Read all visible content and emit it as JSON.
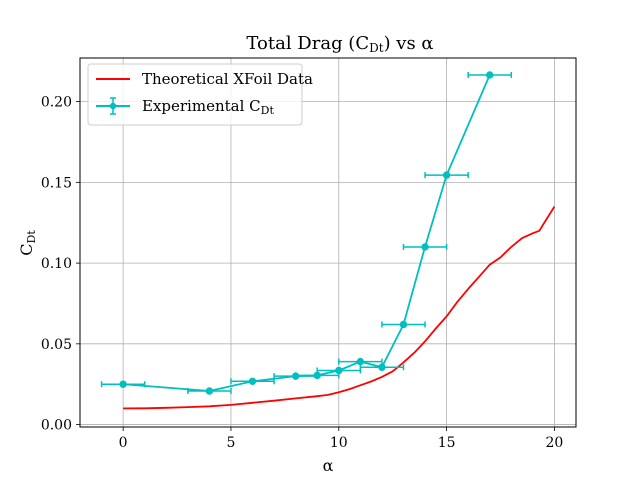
{
  "chart_data": {
    "type": "line",
    "title": "Total Drag (C",
    "title_sub": "Dt",
    "title_tail": ") vs α",
    "xlabel": "α",
    "ylabel": "C",
    "ylabel_sub": "Dt",
    "xlim": [
      -2.0,
      21.0
    ],
    "ylim": [
      -0.0015,
      0.227
    ],
    "grid": true,
    "legend_position": "top-left",
    "x_ticks": [
      0,
      5,
      10,
      15,
      20
    ],
    "x_tick_labels": [
      "0",
      "5",
      "10",
      "15",
      "20"
    ],
    "y_ticks": [
      0.0,
      0.05,
      0.1,
      0.15,
      0.2
    ],
    "y_tick_labels": [
      "0.00",
      "0.05",
      "0.10",
      "0.15",
      "0.20"
    ],
    "series": [
      {
        "name": "Theoretical XFoil Data",
        "color": "#ff0000",
        "x": [
          0,
          1,
          2,
          3,
          4,
          5,
          6,
          7,
          8,
          9,
          9.5,
          10,
          10.5,
          11,
          11.5,
          12,
          12.5,
          13,
          13.5,
          14,
          14.5,
          15,
          15.5,
          16,
          16.5,
          17,
          17.5,
          18,
          18.5,
          19,
          19.3,
          19.6,
          20
        ],
        "y": [
          0.01,
          0.0101,
          0.0104,
          0.0108,
          0.0113,
          0.0122,
          0.0135,
          0.0148,
          0.0162,
          0.0176,
          0.0184,
          0.02,
          0.022,
          0.0243,
          0.0267,
          0.0295,
          0.033,
          0.0385,
          0.0445,
          0.0515,
          0.0595,
          0.067,
          0.076,
          0.084,
          0.0915,
          0.099,
          0.1035,
          0.11,
          0.1155,
          0.1185,
          0.12,
          0.1265,
          0.135
        ]
      },
      {
        "name": "Experimental C",
        "name_sub": "Dt",
        "color": "#00bfbf",
        "x": [
          0,
          4,
          6,
          8,
          9,
          10,
          11,
          12,
          13,
          14,
          15,
          17
        ],
        "y": [
          0.025,
          0.0208,
          0.0268,
          0.03,
          0.0305,
          0.0335,
          0.039,
          0.0355,
          0.062,
          0.11,
          0.1545,
          0.2165
        ],
        "xerr": 1.0
      }
    ]
  }
}
